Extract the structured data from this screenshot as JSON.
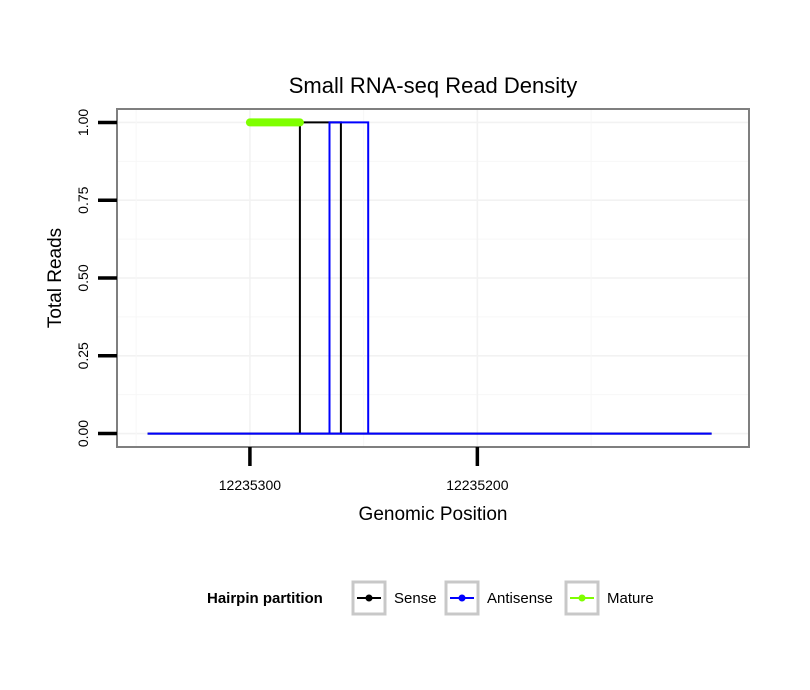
{
  "chart_data": {
    "type": "line",
    "title": "Small RNA-seq Read Density",
    "xlabel": "Genomic Position",
    "ylabel": "Total Reads",
    "x_reversed": true,
    "xlim": [
      12235358,
      12235081
    ],
    "ylim": [
      -0.04,
      1.04
    ],
    "x_ticks": [
      12235300,
      12235200
    ],
    "x_tick_labels": [
      "12235300",
      "12235200"
    ],
    "y_ticks": [
      0,
      0.25,
      0.5,
      0.75,
      1.0
    ],
    "y_tick_labels": [
      "0.00",
      "0.25",
      "0.50",
      "0.75",
      "1.00"
    ],
    "grid": true,
    "legend": {
      "title": "Hairpin partition",
      "position": "bottom"
    },
    "series": [
      {
        "name": "Sense",
        "color": "#000000",
        "x": [
          12235345,
          12235278,
          12235278,
          12235260,
          12235260,
          12235299,
          12235299,
          12235097
        ],
        "y": [
          0,
          0,
          1,
          1,
          0,
          0,
          0,
          0
        ]
      },
      {
        "name": "Antisense",
        "color": "#0000ff",
        "x": [
          12235345,
          12235265,
          12235265,
          12235248,
          12235248,
          12235288,
          12235288,
          12235097
        ],
        "y": [
          0,
          0,
          1,
          1,
          0,
          0,
          0,
          0
        ]
      },
      {
        "name": "Mature",
        "color": "#7fff00",
        "x": [
          12235278,
          12235300
        ],
        "y": [
          1,
          1
        ]
      }
    ]
  }
}
